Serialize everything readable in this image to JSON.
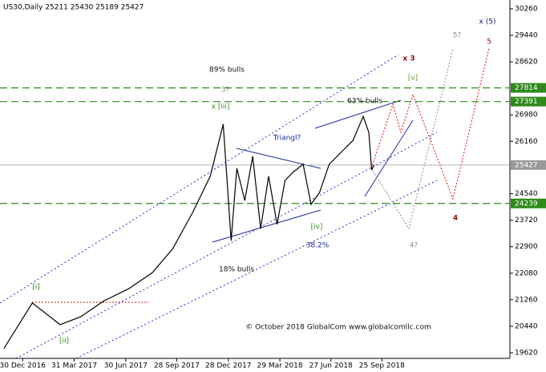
{
  "chart_data": {
    "type": "line",
    "title": "US30,Daily  25211 25430 25189 25427",
    "x": [
      "2016-11-27",
      "2017-01-16",
      "2017-03-06",
      "2017-04-11",
      "2017-05-23",
      "2017-07-05",
      "2017-08-16",
      "2017-09-21",
      "2017-10-26",
      "2017-11-26",
      "2017-12-19",
      "2018-01-02",
      "2018-01-12",
      "2018-01-26",
      "2018-02-09",
      "2018-02-23",
      "2018-03-09",
      "2018-03-24",
      "2018-04-07",
      "2018-04-21",
      "2018-05-09",
      "2018-05-23",
      "2018-06-07",
      "2018-06-24",
      "2018-07-15",
      "2018-08-05",
      "2018-08-23",
      "2018-09-02",
      "2018-09-07",
      "2018-09-11"
    ],
    "series": [
      {
        "color": "#000000",
        "values": [
          19750,
          21160,
          20490,
          20730,
          21230,
          21600,
          22100,
          22840,
          23960,
          25080,
          26690,
          23090,
          25330,
          24330,
          25700,
          23460,
          25080,
          23590,
          24950,
          25200,
          25450,
          24210,
          24580,
          25450,
          25820,
          26190,
          26930,
          26440,
          25270,
          25427
        ]
      }
    ],
    "xlim": [
      "2016-11-20",
      "2019-05-09"
    ],
    "xticks": [
      {
        "value": "2016-12-30",
        "label": "30 Dec 2016"
      },
      {
        "value": "2017-03-31",
        "label": "31 Mar 2017"
      },
      {
        "value": "2017-06-30",
        "label": "30 Jun 2017"
      },
      {
        "value": "2017-09-28",
        "label": "28 Sep 2017"
      },
      {
        "value": "2017-12-28",
        "label": "28 Dec 2017"
      },
      {
        "value": "2018-03-29",
        "label": "29 Mar 2018"
      },
      {
        "value": "2018-06-27",
        "label": "27 Jun 2018"
      },
      {
        "value": "2018-09-25",
        "label": "25 Sep 2018"
      }
    ],
    "ylim": [
      19446,
      30533
    ],
    "yticks": [
      30260,
      29440,
      28620,
      26980,
      26160,
      24540,
      23720,
      22900,
      22080,
      21260,
      20440,
      19620
    ],
    "hlines": [
      {
        "value": 27814,
        "color": "#2f8a1c",
        "style": "dashed"
      },
      {
        "value": 27391,
        "color": "#2f8a1c",
        "style": "dashed"
      },
      {
        "value": 25427,
        "color": "#9a9a9a",
        "style": "solid"
      },
      {
        "value": 24239,
        "color": "#2f8a1c",
        "style": "dashed"
      }
    ],
    "annotations": [
      {
        "text": "89% bulls",
        "color": "#111111"
      },
      {
        "text": "3?",
        "color": "#8c8c8c"
      },
      {
        "text": "x [iii]",
        "color": "#2f8a1c"
      },
      {
        "text": "63% bulls",
        "color": "#111111"
      },
      {
        "text": "[v]",
        "color": "#5a9a1c"
      },
      {
        "text": "x 3",
        "color": "#8b0a0a"
      },
      {
        "text": "5?",
        "color": "#8c8c8c"
      },
      {
        "text": "x (5)",
        "color": "#141a7a"
      },
      {
        "text": "5",
        "color": "#8b0a0a"
      },
      {
        "text": "Triangl?",
        "color": "#1c2a9a"
      },
      {
        "text": "[iv]",
        "color": "#2f8a1c"
      },
      {
        "text": "38.2%",
        "color": "#1c2a9a"
      },
      {
        "text": "4?",
        "color": "#8c8c8c"
      },
      {
        "text": "4",
        "color": "#8b0a0a"
      },
      {
        "text": "18% bulls",
        "color": "#111111"
      },
      {
        "text": "[i]",
        "color": "#2f8a1c"
      },
      {
        "text": "[ii]",
        "color": "#2f8a1c"
      },
      {
        "text": "© October 2018 GlobalCom www.globalcomllc.com",
        "color": "#111111"
      }
    ]
  }
}
